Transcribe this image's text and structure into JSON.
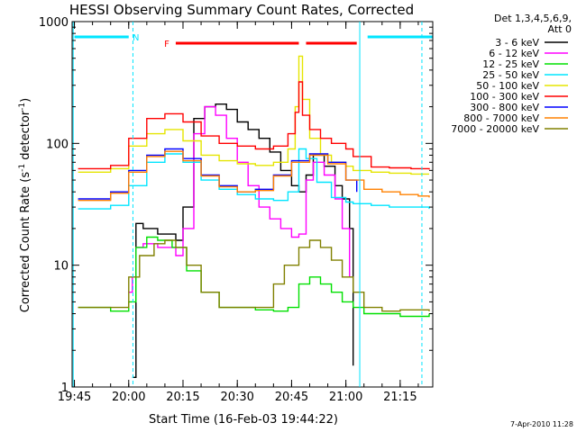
{
  "chart_data": {
    "type": "line",
    "title": "HESSI Observing Summary Count Rates, Corrected",
    "xlabel": "Start Time (16-Feb-03 19:44:22)",
    "ylabel": "Corrected Count Rate (s",
    "ylabel_sup1": "-1",
    "ylabel_mid": " detector",
    "ylabel_sup2": "-1",
    "ylabel_end": ")",
    "footer": "7-Apr-2010 11:28",
    "yscale": "log",
    "ylim": [
      1,
      1000
    ],
    "xlim": [
      "19:44:22",
      "21:24:00"
    ],
    "x_ticks": [
      "19:45",
      "20:00",
      "20:15",
      "20:30",
      "20:45",
      "21:00",
      "21:15"
    ],
    "y_ticks": [
      "1",
      "10",
      "100",
      "1000"
    ],
    "legend": {
      "header": "Det 1,3,4,5,6,9,",
      "header2": "Att 0",
      "position": "right"
    },
    "flags": [
      {
        "label": "N",
        "color": "#00e5ff",
        "segments": [
          [
            "19:45",
            "20:00"
          ],
          [
            "21:06",
            "21:24"
          ]
        ]
      },
      {
        "label": "F",
        "color": "#ff0000",
        "segments": [
          [
            "20:13",
            "20:47"
          ],
          [
            "20:49",
            "21:03"
          ]
        ]
      }
    ],
    "series": [
      {
        "name": "3 - 6 keV",
        "color": "#000000",
        "x": [
          "19:46",
          "20:00",
          "20:01",
          "20:02",
          "20:04",
          "20:08",
          "20:13",
          "20:15",
          "20:18",
          "20:21",
          "20:24",
          "20:27",
          "20:30",
          "20:33",
          "20:36",
          "20:39",
          "20:42",
          "20:45",
          "20:47",
          "20:49",
          "20:51",
          "20:54",
          "20:57",
          "20:59",
          "21:01",
          "21:02"
        ],
        "y": [
          null,
          null,
          1.2,
          22,
          20,
          18,
          16,
          30,
          160,
          200,
          210,
          190,
          150,
          130,
          110,
          85,
          60,
          45,
          40,
          55,
          80,
          65,
          45,
          35,
          20,
          1.5
        ]
      },
      {
        "name": "6 - 12 keV",
        "color": "#ff00ff",
        "x": [
          "20:00",
          "20:01",
          "20:02",
          "20:04",
          "20:08",
          "20:13",
          "20:15",
          "20:18",
          "20:21",
          "20:24",
          "20:27",
          "20:30",
          "20:33",
          "20:36",
          "20:39",
          "20:42",
          "20:45",
          "20:47",
          "20:49",
          "20:51",
          "20:54",
          "20:57",
          "20:59",
          "21:01"
        ],
        "y": [
          6,
          8,
          14,
          15,
          14,
          12,
          20,
          120,
          200,
          170,
          110,
          70,
          45,
          30,
          24,
          20,
          17,
          18,
          50,
          70,
          55,
          35,
          20,
          8
        ]
      },
      {
        "name": "12 - 25 keV",
        "color": "#00e000",
        "x": [
          "19:46",
          "19:55",
          "20:00",
          "20:02",
          "20:05",
          "20:08",
          "20:12",
          "20:16",
          "20:20",
          "20:25",
          "20:30",
          "20:35",
          "20:40",
          "20:44",
          "20:47",
          "20:50",
          "20:53",
          "20:56",
          "20:59",
          "21:02",
          "21:05",
          "21:10",
          "21:15",
          "21:20",
          "21:23"
        ],
        "y": [
          4.5,
          4.2,
          5,
          14,
          17,
          16,
          14,
          9,
          6,
          4.5,
          4.5,
          4.3,
          4.2,
          4.5,
          7,
          8,
          7,
          6,
          5,
          4.5,
          4,
          4,
          3.8,
          3.8,
          4
        ]
      },
      {
        "name": "25 - 50 keV",
        "color": "#00e5ff",
        "x": [
          "19:46",
          "19:55",
          "20:00",
          "20:05",
          "20:10",
          "20:15",
          "20:20",
          "20:25",
          "20:30",
          "20:35",
          "20:40",
          "20:44",
          "20:47",
          "20:49",
          "20:52",
          "20:56",
          "21:00",
          "21:02",
          "21:07",
          "21:12",
          "21:18",
          "21:23"
        ],
        "y": [
          29,
          31,
          45,
          70,
          82,
          70,
          50,
          42,
          38,
          35,
          34,
          40,
          90,
          75,
          48,
          36,
          33,
          32,
          31,
          30,
          30,
          29
        ]
      },
      {
        "name": "50 - 100 keV",
        "color": "#e5e500",
        "x": [
          "19:46",
          "19:55",
          "20:00",
          "20:05",
          "20:10",
          "20:15",
          "20:20",
          "20:25",
          "20:30",
          "20:35",
          "20:40",
          "20:44",
          "20:46",
          "20:47",
          "20:48",
          "20:50",
          "20:53",
          "20:56",
          "21:00",
          "21:02",
          "21:07",
          "21:12",
          "21:18",
          "21:23"
        ],
        "y": [
          58,
          62,
          95,
          120,
          130,
          105,
          80,
          72,
          68,
          66,
          70,
          90,
          200,
          520,
          230,
          110,
          80,
          70,
          65,
          60,
          58,
          57,
          56,
          56
        ]
      },
      {
        "name": "100 - 300 keV",
        "color": "#ff0000",
        "x": [
          "19:46",
          "19:55",
          "20:00",
          "20:05",
          "20:10",
          "20:15",
          "20:20",
          "20:25",
          "20:30",
          "20:35",
          "20:40",
          "20:44",
          "20:46",
          "20:47",
          "20:48",
          "20:50",
          "20:53",
          "20:56",
          "21:00",
          "21:02",
          "21:07",
          "21:12",
          "21:18",
          "21:23"
        ],
        "y": [
          62,
          66,
          110,
          160,
          175,
          150,
          115,
          100,
          95,
          90,
          95,
          120,
          180,
          320,
          170,
          130,
          110,
          100,
          90,
          78,
          64,
          63,
          62,
          61
        ]
      },
      {
        "name": "300 - 800 keV",
        "color": "#0000ff",
        "x": [
          "19:46",
          "19:55",
          "20:00",
          "20:05",
          "20:10",
          "20:15",
          "20:20",
          "20:25",
          "20:30",
          "20:35",
          "20:40",
          "20:45",
          "20:50",
          "20:55",
          "21:00",
          "21:03"
        ],
        "y": [
          35,
          40,
          60,
          80,
          90,
          75,
          55,
          45,
          40,
          42,
          55,
          72,
          82,
          70,
          50,
          40
        ]
      },
      {
        "name": "800 - 7000 keV",
        "color": "#ff8000",
        "x": [
          "19:46",
          "19:55",
          "20:00",
          "20:05",
          "20:10",
          "20:15",
          "20:20",
          "20:25",
          "20:30",
          "20:35",
          "20:40",
          "20:45",
          "20:50",
          "20:55",
          "21:00",
          "21:05",
          "21:10",
          "21:15",
          "21:20",
          "21:23"
        ],
        "y": [
          34,
          39,
          58,
          78,
          86,
          72,
          54,
          44,
          40,
          41,
          54,
          70,
          80,
          68,
          50,
          42,
          40,
          38,
          37,
          36
        ]
      },
      {
        "name": "7000 - 20000 keV",
        "color": "#808000",
        "x": [
          "19:46",
          "19:55",
          "20:00",
          "20:03",
          "20:07",
          "20:10",
          "20:13",
          "20:16",
          "20:20",
          "20:25",
          "20:30",
          "20:35",
          "20:40",
          "20:43",
          "20:47",
          "20:50",
          "20:53",
          "20:56",
          "20:59",
          "21:02",
          "21:05",
          "21:10",
          "21:15",
          "21:20",
          "21:23"
        ],
        "y": [
          4.5,
          4.5,
          8,
          12,
          15,
          16,
          14,
          10,
          6,
          4.5,
          4.5,
          4.5,
          7,
          10,
          14,
          16,
          14,
          11,
          8,
          6,
          4.5,
          4.2,
          4.3,
          4.3,
          4.2
        ]
      }
    ]
  }
}
